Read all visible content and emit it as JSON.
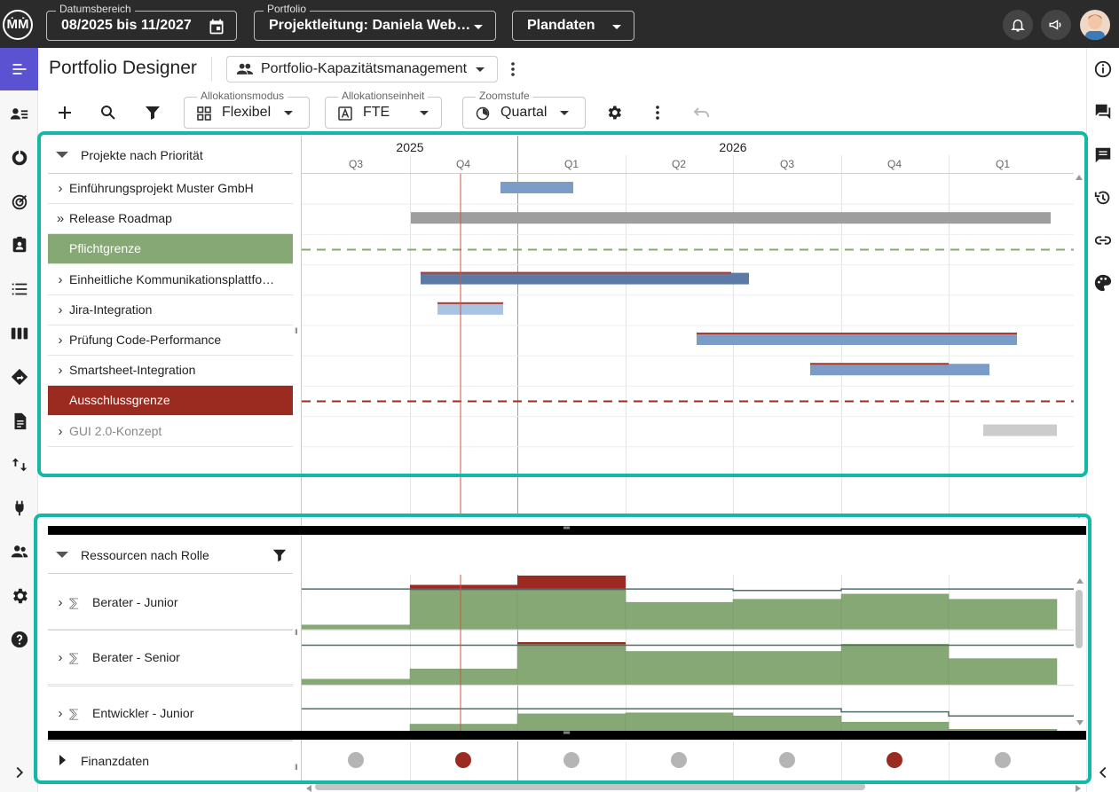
{
  "topbar": {
    "logo_text": "ṀṀ",
    "daterange": {
      "label": "Datumsbereich",
      "value": "08/2025 bis 11/2027",
      "icon": "calendar-icon"
    },
    "portfolio": {
      "label": "Portfolio",
      "value": "Projektleitung: Daniela Web…"
    },
    "plandaten": {
      "value": "Plandaten"
    },
    "icons": [
      "bell-icon",
      "megaphone-icon",
      "avatar"
    ]
  },
  "leftrail": {
    "icons": [
      "menu-icon",
      "people-list-icon",
      "donut-chart-icon",
      "target-icon",
      "badge-icon",
      "list-icon",
      "columns-icon",
      "directions-icon",
      "document-icon",
      "swap-vertical-icon",
      "plug-icon",
      "group-icon",
      "gear-icon",
      "help-icon"
    ],
    "expand_icon": "chevron-right-icon"
  },
  "rightrail": {
    "icons": [
      "info-icon",
      "chat-icon",
      "comment-icon",
      "history-icon",
      "link-icon",
      "palette-icon"
    ],
    "collapse_icon": "chevron-left-icon"
  },
  "header": {
    "title": "Portfolio Designer",
    "view": {
      "value": "Portfolio-Kapazitätsmanagement",
      "icon": "people-icon"
    },
    "more_icon": "more-vertical-icon"
  },
  "toolbar": {
    "icons": [
      "add-icon",
      "search-icon",
      "filter-icon"
    ],
    "allokationsmodus": {
      "label": "Allokationsmodus",
      "value": "Flexibel",
      "icon": "grid-icon"
    },
    "allokationseinheit": {
      "label": "Allokationseinheit",
      "value": "FTE",
      "icon": "letter-a-icon"
    },
    "zoomstufe": {
      "label": "Zoomstufe",
      "value": "Quartal",
      "icon": "clock-icon"
    },
    "right_icons": [
      "settings-icon",
      "more-vertical-icon",
      "undo-icon"
    ]
  },
  "timeline": {
    "years": [
      {
        "label": "2025",
        "start_q": 0,
        "span_q": 2
      },
      {
        "label": "2026",
        "start_q": 2,
        "span_q": 4
      }
    ],
    "quarters": [
      "Q3",
      "Q4",
      "Q1",
      "Q2",
      "Q3",
      "Q4",
      "Q1"
    ],
    "today_q": 1.47
  },
  "projects": {
    "header": "Projekte nach Priorität",
    "rows": [
      {
        "label": "Einführungsprojekt Muster GmbH",
        "chevron": "›",
        "kind": "project",
        "bar": {
          "start_q": 1.84,
          "end_q": 2.52,
          "color": "#7b9cc6"
        }
      },
      {
        "label": "Release Roadmap",
        "chevron": "»",
        "kind": "project",
        "bar": {
          "start_q": 1.01,
          "end_q": 6.95,
          "color": "#9e9e9e"
        }
      },
      {
        "label": "Pflichtgrenze",
        "chevron": "",
        "kind": "limit",
        "color": "#86a874"
      },
      {
        "label": "Einheitliche Kommunikationsplattfo…",
        "chevron": "›",
        "kind": "project",
        "bar": {
          "start_q": 1.1,
          "end_q": 4.15,
          "color": "#5b7ba6",
          "overlap_end_q": 3.98
        }
      },
      {
        "label": "Jira-Integration",
        "chevron": "›",
        "kind": "project",
        "bar": {
          "start_q": 1.26,
          "end_q": 1.87,
          "color": "#a9c3e3",
          "overlap_end_q": 1.87
        }
      },
      {
        "label": "Prüfung Code-Performance",
        "chevron": "›",
        "kind": "project",
        "bar": {
          "start_q": 3.66,
          "end_q": 6.63,
          "color": "#7b9cc6",
          "overlap_end_q": 6.63
        }
      },
      {
        "label": "Smartsheet-Integration",
        "chevron": "›",
        "kind": "project",
        "bar": {
          "start_q": 4.72,
          "end_q": 6.38,
          "color": "#7b9cc6",
          "overlap_end_q": 6.0
        }
      },
      {
        "label": "Ausschlussgrenze",
        "chevron": "",
        "kind": "limit",
        "color": "#9b2b20"
      },
      {
        "label": "GUI 2.0-Konzept",
        "chevron": "›",
        "kind": "excluded",
        "bar": {
          "start_q": 6.32,
          "end_q": 7.0,
          "color": "#cccccc"
        }
      }
    ]
  },
  "resources": {
    "header": "Ressourcen nach Rolle",
    "filter_icon": "filter-icon",
    "rows": [
      {
        "label": "Berater - Junior",
        "icon": "sigma-person-icon",
        "capacity": [
          0.08,
          0.76,
          0.76,
          0.52,
          0.58,
          0.68,
          0.58
        ],
        "overload": [
          0,
          0.1,
          0.28,
          0,
          0,
          0,
          0
        ],
        "threshold": [
          0.78,
          0.78,
          0.78,
          0.78,
          0.75,
          0.78,
          0.78
        ]
      },
      {
        "label": "Berater - Senior",
        "icon": "sigma-person-icon",
        "capacity": [
          0.1,
          0.3,
          0.78,
          0.64,
          0.64,
          0.78,
          0.5
        ],
        "overload": [
          0,
          0,
          0.04,
          0,
          0,
          0,
          0
        ],
        "threshold": [
          0.76,
          0.76,
          0.76,
          0.76,
          0.76,
          0.76,
          0.76
        ]
      },
      {
        "label": "Entwickler - Junior",
        "icon": "sigma-person-icon",
        "capacity": [
          0.02,
          0.3,
          0.5,
          0.52,
          0.46,
          0.34,
          0.2
        ],
        "overload": [
          0,
          0,
          0,
          0,
          0,
          0,
          0
        ],
        "threshold": [
          0.6,
          0.6,
          0.6,
          0.6,
          0.6,
          0.54,
          0.46
        ]
      }
    ]
  },
  "finance": {
    "label": "Finanzdaten",
    "status": [
      "neutral",
      "critical",
      "neutral",
      "neutral",
      "neutral",
      "critical",
      "neutral"
    ]
  },
  "colors": {
    "accent": "#14b8a6",
    "nav_active": "#5a52d0",
    "capacity_green": "#86a874",
    "overload_red": "#9b2b20",
    "threshold": "#4e6e6e",
    "dot_neutral": "#b5b5b5",
    "dot_critical": "#9b2b20"
  }
}
